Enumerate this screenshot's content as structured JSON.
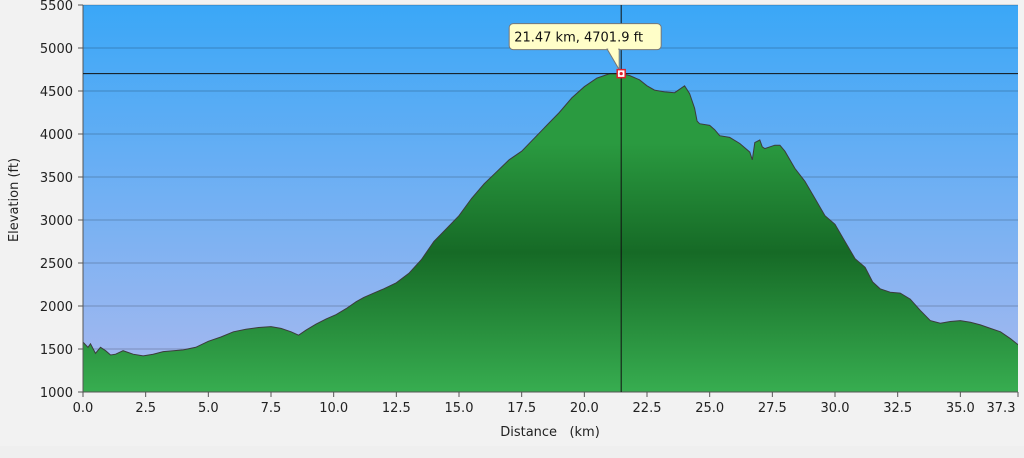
{
  "chart_data": {
    "type": "area",
    "title": "",
    "xlabel": "Distance   (km)",
    "ylabel": "Elevation (ft)",
    "xlim": [
      0,
      37.3
    ],
    "ylim": [
      1000,
      5500
    ],
    "x_ticks": [
      0,
      2.5,
      5,
      7.5,
      10,
      12.5,
      15,
      17.5,
      20,
      22.5,
      25,
      27.5,
      30,
      32.5,
      35,
      37.3
    ],
    "x_tick_labels": [
      "0.0",
      "2.5",
      "5.0",
      "7.5",
      "10.0",
      "12.5",
      "15.0",
      "17.5",
      "20.0",
      "22.5",
      "25.0",
      "27.5",
      "30.0",
      "32.5",
      "35.0",
      "37.3"
    ],
    "y_ticks": [
      1000,
      1500,
      2000,
      2500,
      3000,
      3500,
      4000,
      4500,
      5000,
      5500
    ],
    "y_tick_labels": [
      "1000",
      "1500",
      "2000",
      "2500",
      "3000",
      "3500",
      "4000",
      "4500",
      "5000",
      "5500"
    ],
    "grid": true,
    "series": [
      {
        "x": [
          0,
          0.2,
          0.3,
          0.5,
          0.7,
          0.9,
          1.1,
          1.3,
          1.6,
          2.0,
          2.4,
          2.8,
          3.2,
          3.6,
          4.0,
          4.5,
          5.0,
          5.5,
          6.0,
          6.5,
          7.0,
          7.5,
          7.9,
          8.3,
          8.6,
          8.9,
          9.3,
          9.7,
          10.1,
          10.5,
          10.9,
          11.2,
          11.6,
          12.0,
          12.5,
          13.0,
          13.5,
          14.0,
          14.5,
          15.0,
          15.5,
          16.0,
          16.5,
          17.0,
          17.5,
          18.0,
          18.5,
          19.0,
          19.5,
          20.0,
          20.5,
          21.0,
          21.47,
          21.8,
          22.2,
          22.5,
          22.8,
          23.2,
          23.6,
          24.0,
          24.2,
          24.4,
          24.5,
          24.6,
          25.0,
          25.2,
          25.4,
          25.8,
          26.2,
          26.6,
          26.7,
          26.8,
          27.0,
          27.1,
          27.2,
          27.6,
          27.8,
          28.0,
          28.4,
          28.8,
          29.2,
          29.6,
          30.0,
          30.4,
          30.8,
          31.2,
          31.5,
          31.8,
          32.2,
          32.6,
          33.0,
          33.4,
          33.8,
          34.2,
          34.6,
          35.0,
          35.4,
          35.8,
          36.2,
          36.6,
          37.0,
          37.3
        ],
        "y": [
          1580,
          1520,
          1560,
          1450,
          1520,
          1480,
          1430,
          1440,
          1480,
          1440,
          1420,
          1440,
          1470,
          1480,
          1490,
          1520,
          1590,
          1640,
          1700,
          1730,
          1750,
          1760,
          1740,
          1700,
          1660,
          1720,
          1790,
          1850,
          1900,
          1970,
          2050,
          2100,
          2150,
          2200,
          2270,
          2380,
          2540,
          2750,
          2900,
          3050,
          3250,
          3420,
          3560,
          3700,
          3800,
          3950,
          4100,
          4250,
          4420,
          4550,
          4650,
          4700,
          4701.9,
          4680,
          4630,
          4560,
          4510,
          4490,
          4480,
          4560,
          4470,
          4300,
          4150,
          4120,
          4100,
          4050,
          3980,
          3960,
          3890,
          3790,
          3700,
          3900,
          3930,
          3850,
          3830,
          3870,
          3870,
          3800,
          3600,
          3450,
          3250,
          3050,
          2950,
          2750,
          2550,
          2450,
          2280,
          2200,
          2160,
          2150,
          2080,
          1950,
          1830,
          1800,
          1820,
          1830,
          1810,
          1780,
          1740,
          1700,
          1620,
          1550
        ]
      }
    ],
    "annotations": [
      {
        "x": 21.47,
        "y": 4701.9,
        "text": "21.47 km, 4701.9 ft"
      }
    ],
    "colors": {
      "sky_top": "#3aa7f7",
      "sky_bottom": "#aab9ef",
      "fill_top": "#2a9a40",
      "fill_mid": "#166a26",
      "fill_bottom": "#37ad50",
      "line": "#3c3c3c",
      "tooltip_bg": "#fffec8",
      "marker": "#e0202a"
    }
  }
}
